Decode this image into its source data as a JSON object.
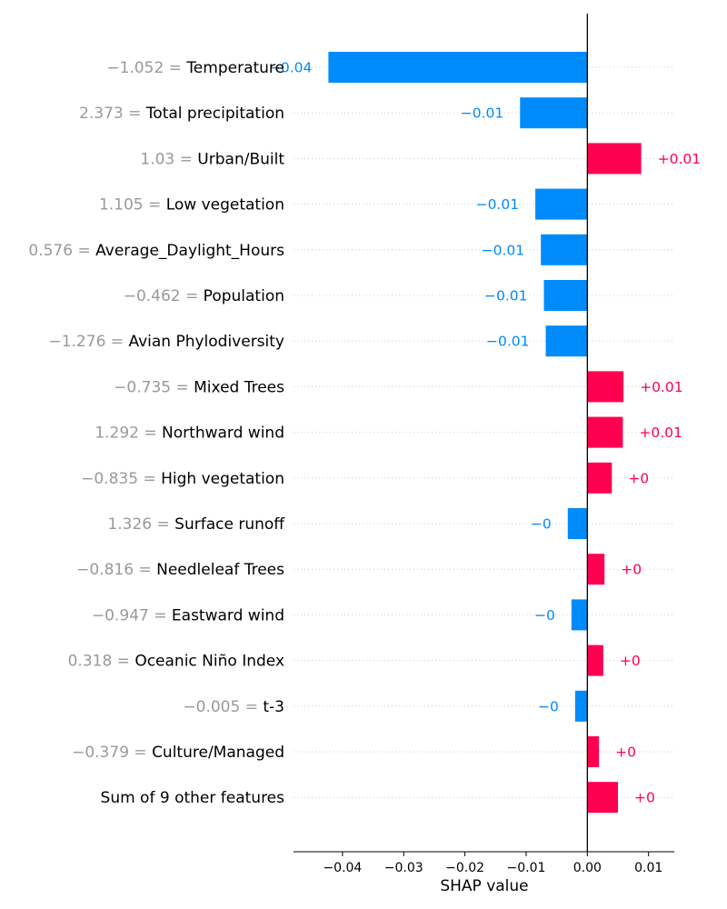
{
  "chart_data": {
    "type": "bar",
    "orientation": "horizontal",
    "xlabel": "SHAP value",
    "xlim": [
      -0.048,
      0.0142
    ],
    "x_ticks": [
      -0.04,
      -0.03,
      -0.02,
      -0.01,
      0.0,
      0.01
    ],
    "x_tick_labels": [
      "−0.04",
      "−0.03",
      "−0.02",
      "−0.01",
      "0.00",
      "0.01"
    ],
    "grid": "dotted horizontal guides",
    "colors": {
      "positive": "#ff0051",
      "negative": "#008bfb",
      "value_text": "#999999"
    },
    "features": [
      {
        "value": "−1.052",
        "name": "Temperature",
        "shap": -0.0423,
        "label": "−0.04"
      },
      {
        "value": "2.373",
        "name": "Total precipitation",
        "shap": -0.011,
        "label": "−0.01"
      },
      {
        "value": "1.03",
        "name": "Urban/Built",
        "shap": 0.0088,
        "label": "+0.01"
      },
      {
        "value": "1.105",
        "name": "Low vegetation",
        "shap": -0.0085,
        "label": "−0.01"
      },
      {
        "value": "0.576",
        "name": "Average_Daylight_Hours",
        "shap": -0.0076,
        "label": "−0.01"
      },
      {
        "value": "−0.462",
        "name": "Population",
        "shap": -0.0071,
        "label": "−0.01"
      },
      {
        "value": "−1.276",
        "name": "Avian Phylodiversity",
        "shap": -0.0068,
        "label": "−0.01"
      },
      {
        "value": "−0.735",
        "name": "Mixed Trees",
        "shap": 0.0059,
        "label": "+0.01"
      },
      {
        "value": "1.292",
        "name": "Northward wind",
        "shap": 0.0058,
        "label": "+0.01"
      },
      {
        "value": "−0.835",
        "name": "High vegetation",
        "shap": 0.004,
        "label": "+0"
      },
      {
        "value": "1.326",
        "name": "Surface runoff",
        "shap": -0.0032,
        "label": "−0"
      },
      {
        "value": "−0.816",
        "name": "Needleleaf Trees",
        "shap": 0.0028,
        "label": "+0"
      },
      {
        "value": "−0.947",
        "name": "Eastward wind",
        "shap": -0.0026,
        "label": "−0"
      },
      {
        "value": "0.318",
        "name": "Oceanic Niño Index",
        "shap": 0.0026,
        "label": "+0"
      },
      {
        "value": "−0.005",
        "name": "t-3",
        "shap": -0.002,
        "label": "−0"
      },
      {
        "value": "−0.379",
        "name": "Culture/Managed",
        "shap": 0.0019,
        "label": "+0"
      },
      {
        "value": "",
        "name": "Sum of 9 other features",
        "shap": 0.005,
        "label": "+0"
      }
    ]
  }
}
